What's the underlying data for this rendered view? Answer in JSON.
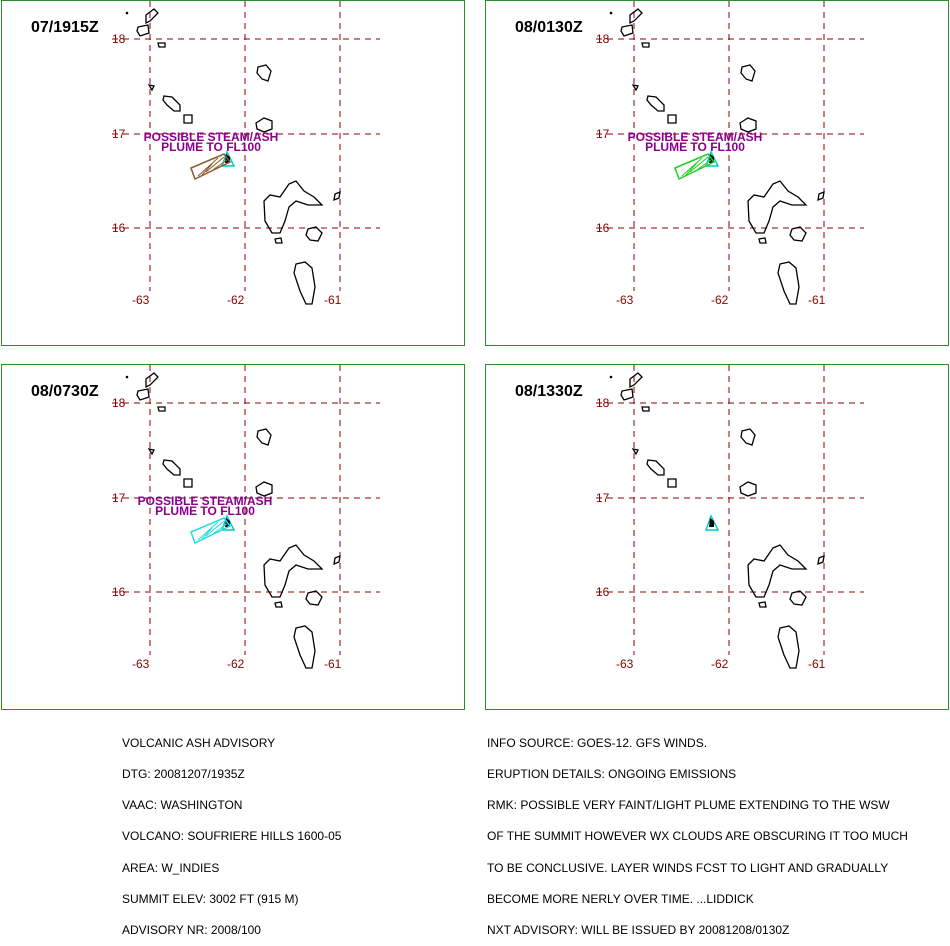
{
  "panels": [
    {
      "time": "07/1915Z",
      "plume_text_1": "POSSIBLE STEAM/ASH",
      "plume_text_2": "PLUME TO FL100",
      "plume_color": "#8b5a2b"
    },
    {
      "time": "08/0130Z",
      "plume_text_1": "POSSIBLE STEAM/ASH",
      "plume_text_2": "PLUME TO FL100",
      "plume_color": "#22cc22"
    },
    {
      "time": "08/0730Z",
      "plume_text_1": "POSSIBLE STEAM/ASH",
      "plume_text_2": "PLUME TO FL100",
      "plume_color": "#22dddd"
    },
    {
      "time": "08/1330Z",
      "plume_text_1": "",
      "plume_text_2": "",
      "plume_color": ""
    }
  ],
  "grid": {
    "lat_labels": [
      "18",
      "17",
      "16"
    ],
    "lon_labels": [
      "-63",
      "-62",
      "-61"
    ],
    "line_color": "#8b0000",
    "volcano_marker_color": "#00cccc"
  },
  "advisory_left": [
    "VOLCANIC ASH ADVISORY",
    "DTG: 20081207/1935Z",
    "VAAC: WASHINGTON",
    "VOLCANO: SOUFRIERE HILLS 1600-05",
    "AREA: W_INDIES",
    "SUMMIT ELEV: 3002 FT (915 M)",
    "ADVISORY NR: 2008/100"
  ],
  "advisory_right": [
    "INFO SOURCE: GOES-12. GFS WINDS.",
    "ERUPTION DETAILS: ONGOING EMISSIONS",
    "RMK: POSSIBLE VERY FAINT/LIGHT PLUME EXTENDING TO THE WSW",
    "OF THE SUMMIT HOWEVER WX CLOUDS ARE OBSCURING IT TOO MUCH",
    "TO BE CONCLUSIVE. LAYER WINDS FCST TO LIGHT AND GRADUALLY",
    "BECOME MORE NERLY OVER TIME. ...LIDDICK",
    "NXT ADVISORY: WILL BE ISSUED BY 20081208/0130Z"
  ]
}
